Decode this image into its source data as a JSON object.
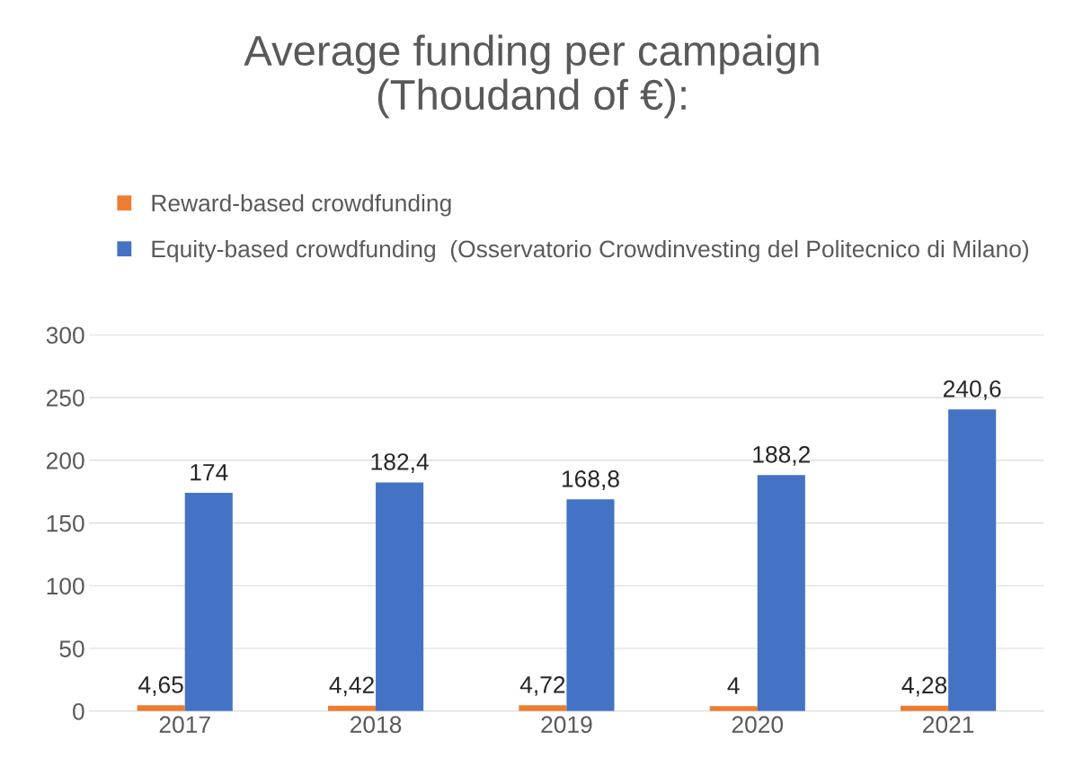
{
  "chart_data": {
    "type": "bar",
    "title": "Average funding per campaign\n(Thoudand of €):",
    "categories": [
      "2017",
      "2018",
      "2019",
      "2020",
      "2021"
    ],
    "series": [
      {
        "name": "Reward-based crowdfunding",
        "color": "#ed7d31",
        "values": [
          4.65,
          4.42,
          4.72,
          4,
          4.28
        ],
        "value_labels": [
          "4,65",
          "4,42",
          "4,72",
          "4",
          "4,28"
        ]
      },
      {
        "name": "Equity-based crowdfunding  (Osservatorio Crowdinvesting del Politecnico di Milano)",
        "color": "#4472c4",
        "values": [
          174,
          182.4,
          168.8,
          188.2,
          240.6
        ],
        "value_labels": [
          "174",
          "182,4",
          "168,8",
          "188,2",
          "240,6"
        ]
      }
    ],
    "ylim": [
      0,
      300
    ],
    "yticks": [
      0,
      50,
      100,
      150,
      200,
      250,
      300
    ],
    "grid": "y",
    "legend": "top"
  }
}
